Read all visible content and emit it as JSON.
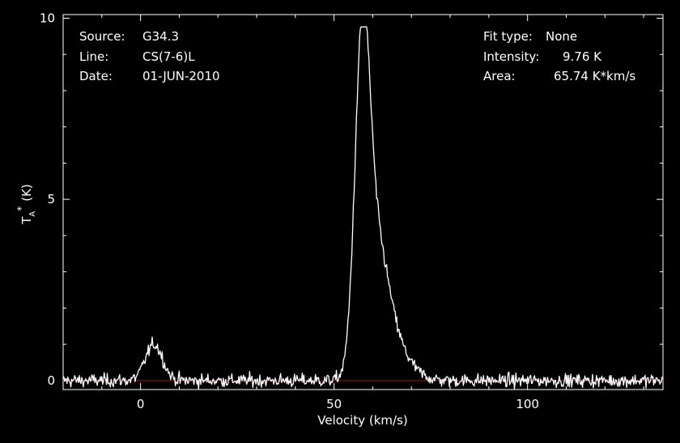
{
  "chart_data": {
    "type": "line",
    "xlabel": "Velocity (km/s)",
    "ylabel": "T_A^* (K)",
    "ylabel_parts": {
      "base": "T",
      "sub": "A",
      "sup": "*",
      "unit": "(K)"
    },
    "xlim": [
      -20,
      135
    ],
    "ylim": [
      -0.25,
      10.1
    ],
    "x_ticks": [
      0,
      50,
      100
    ],
    "x_tick_labels": [
      "0",
      "50",
      "100"
    ],
    "y_ticks": [
      0,
      5,
      10
    ],
    "y_tick_labels": [
      "0",
      "5",
      "10"
    ],
    "baseline": 0,
    "colors": {
      "background": "#000000",
      "axes": "#ffffff",
      "spectrum": "#ffffff",
      "baseline": "#cc0000"
    },
    "info_left": [
      {
        "key": "Source:",
        "value": "G34.3"
      },
      {
        "key": "Line:",
        "value": "CS(7-6)L"
      },
      {
        "key": "Date:",
        "value": "01-JUN-2010"
      }
    ],
    "info_right": [
      {
        "key": "Fit type:",
        "value": "None"
      },
      {
        "key": "Intensity:",
        "value": "9.76 K"
      },
      {
        "key": "Area:",
        "value": "65.74 K*km/s"
      }
    ],
    "series": [
      {
        "components": [
          {
            "center": 3.5,
            "amplitude": 1.0,
            "sigma": 2.2
          },
          {
            "center": 57.3,
            "amplitude": 8.1,
            "sigma": 1.9
          },
          {
            "center": 60.5,
            "amplitude": 3.2,
            "sigma": 3.2
          },
          {
            "center": 64.5,
            "amplitude": 1.0,
            "sigma": 4.5
          }
        ],
        "noise_rms": 0.09,
        "channel_width_kms": 0.2,
        "peak": 9.76
      }
    ]
  }
}
